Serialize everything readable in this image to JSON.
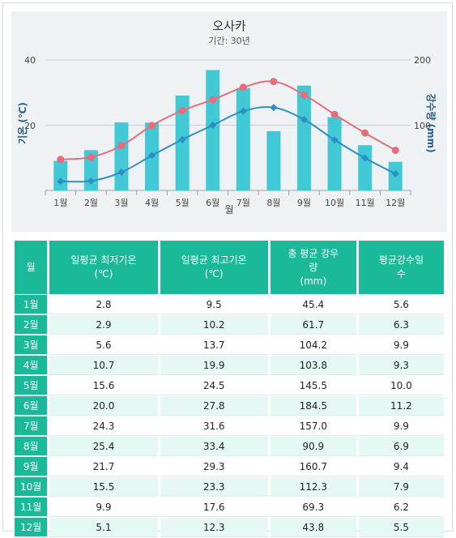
{
  "chart_data": {
    "type": "bar+line",
    "title": "오사카",
    "subtitle": "기간: 30년",
    "xlabel": "월",
    "ylabel_left": "기온 (℃)",
    "ylabel_right": "강수량 (mm)",
    "ylim_left": [
      0,
      40
    ],
    "ylim_right": [
      0,
      200
    ],
    "yticks_left": [
      "20",
      "40"
    ],
    "yticks_right": [
      "100",
      "200"
    ],
    "categories": [
      "1월",
      "2월",
      "3월",
      "4월",
      "5월",
      "6월",
      "7월",
      "8월",
      "9월",
      "10월",
      "11월",
      "12월"
    ],
    "series": [
      {
        "kind": "bar",
        "axis": "right",
        "color": "#41c9d6",
        "values": [
          45.4,
          61.7,
          104.2,
          103.8,
          145.5,
          184.5,
          157.0,
          90.9,
          160.7,
          112.3,
          69.3,
          43.8
        ]
      },
      {
        "kind": "line",
        "axis": "left",
        "color": "#e86d7a",
        "marker": "circle",
        "values": [
          9.5,
          10.2,
          13.7,
          19.9,
          24.5,
          27.8,
          31.6,
          33.4,
          29.3,
          23.3,
          17.6,
          12.3
        ]
      },
      {
        "kind": "line",
        "axis": "left",
        "color": "#2e8fc4",
        "marker": "diamond",
        "values": [
          2.8,
          2.9,
          5.6,
          10.7,
          15.6,
          20.0,
          24.3,
          25.4,
          21.7,
          15.5,
          9.9,
          5.1
        ]
      }
    ],
    "grid": true,
    "legend": "none"
  },
  "table": {
    "headers": [
      "월",
      "일평균 최저기온\n(℃)",
      "일평균 최고기온\n(℃)",
      "총 평균 강우\n량\n(mm)",
      "평균강수일\n수"
    ],
    "rows": [
      [
        "1월",
        "2.8",
        "9.5",
        "45.4",
        "5.6"
      ],
      [
        "2월",
        "2.9",
        "10.2",
        "61.7",
        "6.3"
      ],
      [
        "3월",
        "5.6",
        "13.7",
        "104.2",
        "9.9"
      ],
      [
        "4월",
        "10.7",
        "19.9",
        "103.8",
        "9.3"
      ],
      [
        "5월",
        "15.6",
        "24.5",
        "145.5",
        "10.0"
      ],
      [
        "6월",
        "20.0",
        "27.8",
        "184.5",
        "11.2"
      ],
      [
        "7월",
        "24.3",
        "31.6",
        "157.0",
        "9.9"
      ],
      [
        "8월",
        "25.4",
        "33.4",
        "90.9",
        "6.9"
      ],
      [
        "9월",
        "21.7",
        "29.3",
        "160.7",
        "9.4"
      ],
      [
        "10월",
        "15.5",
        "23.3",
        "112.3",
        "7.9"
      ],
      [
        "11월",
        "9.9",
        "17.6",
        "69.3",
        "6.2"
      ],
      [
        "12월",
        "5.1",
        "12.3",
        "43.8",
        "5.5"
      ]
    ]
  }
}
